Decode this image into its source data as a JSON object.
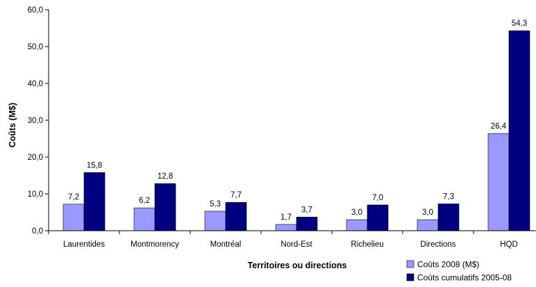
{
  "chart_data": {
    "type": "bar",
    "categories": [
      "Laurentides",
      "Montmorency",
      "Montréal",
      "Nord-Est",
      "Richelieu",
      "Directions",
      "HQD"
    ],
    "series": [
      {
        "name": "Coûts 2008 (M$)",
        "color": "#9999ff",
        "values": [
          7.2,
          6.2,
          5.3,
          1.7,
          3.0,
          3.0,
          26.4
        ],
        "labels": [
          "7,2",
          "6,2",
          "5,3",
          "1,7",
          "3,0",
          "3,0",
          "26,4"
        ]
      },
      {
        "name": "Coûts cumulatifs 2005-08",
        "color": "#000080",
        "values": [
          15.8,
          12.8,
          7.7,
          3.7,
          7.0,
          7.3,
          54.3
        ],
        "labels": [
          "15,8",
          "12,8",
          "7,7",
          "3,7",
          "7,0",
          "7,3",
          "54,3"
        ]
      }
    ],
    "title": "",
    "xlabel": "Territoires ou directions",
    "ylabel": "Coûts (M$)",
    "ylim": [
      0,
      60
    ],
    "yticks": [
      0,
      10,
      20,
      30,
      40,
      50,
      60
    ],
    "ytick_labels": [
      "0,0",
      "10,0",
      "20,0",
      "30,0",
      "40,0",
      "50,0",
      "60,0"
    ],
    "grid": false,
    "legend_position": "bottom-right"
  }
}
